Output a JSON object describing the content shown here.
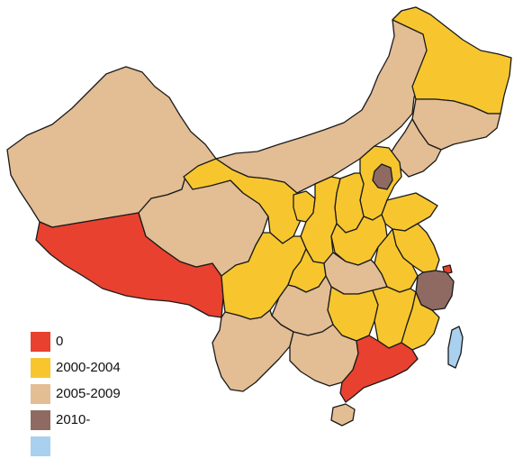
{
  "colors": {
    "cat_0": "#e8412f",
    "cat_2000_2004": "#f7c62f",
    "cat_2005_2009": "#e3bd93",
    "cat_2010": "#8e6a63",
    "cat_extra": "#a9d0ee",
    "outline": "#1a1a1a",
    "background": "#ffffff"
  },
  "legend": {
    "items": [
      {
        "label": "0",
        "color": "#e8412f"
      },
      {
        "label": "2000-2004",
        "color": "#f7c62f"
      },
      {
        "label": "2005-2009",
        "color": "#e3bd93"
      },
      {
        "label": "2010-",
        "color": "#8e6a63"
      },
      {
        "label": "",
        "color": "#a9d0ee"
      }
    ]
  },
  "regions": [
    {
      "name": "xinjiang",
      "category": "2005-2009"
    },
    {
      "name": "tibet",
      "category": "0"
    },
    {
      "name": "qinghai",
      "category": "2005-2009"
    },
    {
      "name": "gansu",
      "category": "2000-2004"
    },
    {
      "name": "inner-mongolia",
      "category": "2005-2009"
    },
    {
      "name": "heilongjiang",
      "category": "2000-2004"
    },
    {
      "name": "jilin",
      "category": "2005-2009"
    },
    {
      "name": "liaoning",
      "category": "2005-2009"
    },
    {
      "name": "beijing",
      "category": "2010-"
    },
    {
      "name": "hebei",
      "category": "2000-2004"
    },
    {
      "name": "shanxi",
      "category": "2000-2004"
    },
    {
      "name": "shandong",
      "category": "2000-2004"
    },
    {
      "name": "ningxia",
      "category": "2000-2004"
    },
    {
      "name": "shaanxi",
      "category": "2000-2004"
    },
    {
      "name": "henan",
      "category": "2000-2004"
    },
    {
      "name": "jiangsu",
      "category": "2000-2004"
    },
    {
      "name": "anhui",
      "category": "2000-2004"
    },
    {
      "name": "shanghai",
      "category": "0"
    },
    {
      "name": "zhejiang",
      "category": "2010-"
    },
    {
      "name": "sichuan",
      "category": "2000-2004"
    },
    {
      "name": "chongqing",
      "category": "2000-2004"
    },
    {
      "name": "hubei",
      "category": "2005-2009"
    },
    {
      "name": "hunan",
      "category": "2000-2004"
    },
    {
      "name": "jiangxi",
      "category": "2000-2004"
    },
    {
      "name": "fujian",
      "category": "2000-2004"
    },
    {
      "name": "guizhou",
      "category": "2005-2009"
    },
    {
      "name": "yunnan",
      "category": "2005-2009"
    },
    {
      "name": "guangxi",
      "category": "2005-2009"
    },
    {
      "name": "guangdong",
      "category": "0"
    },
    {
      "name": "hainan",
      "category": "2005-2009"
    },
    {
      "name": "taiwan",
      "category": "extra"
    }
  ]
}
